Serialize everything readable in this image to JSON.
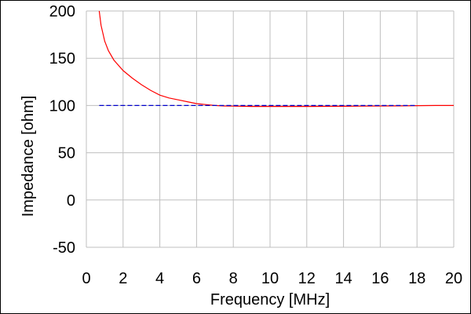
{
  "chart_data": {
    "type": "line",
    "title": "",
    "xlabel": "Frequency [MHz]",
    "ylabel": "Impedance [ohm]",
    "xlim": [
      0,
      20
    ],
    "ylim": [
      -50,
      200
    ],
    "x_ticks": [
      0,
      2,
      4,
      6,
      8,
      10,
      12,
      14,
      16,
      18,
      20
    ],
    "y_ticks": [
      -50,
      0,
      50,
      100,
      150,
      200
    ],
    "grid": true,
    "legend": "none",
    "series": [
      {
        "color": "#ff0000",
        "x": [
          0.7,
          0.8,
          1.0,
          1.2,
          1.5,
          2.0,
          2.5,
          3.0,
          3.5,
          4.0,
          4.5,
          5.0,
          5.5,
          6.0,
          6.5,
          7.0,
          7.5,
          8.0,
          9.0,
          10.0,
          11.0,
          12.0,
          13.0,
          14.0,
          15.0,
          16.0,
          17.0,
          18.0,
          19.0,
          20.0
        ],
        "y": [
          200,
          185,
          168,
          158,
          148,
          137,
          129,
          122,
          116,
          111,
          108,
          106,
          104,
          102,
          101,
          100,
          99.5,
          99.3,
          99.0,
          99.0,
          99.0,
          99.0,
          99.1,
          99.2,
          99.3,
          99.5,
          99.6,
          99.8,
          100,
          100
        ]
      },
      {
        "color": "#0000cc",
        "dashed": true,
        "x": [
          0.7,
          2,
          4,
          6,
          8,
          10,
          12,
          14,
          16,
          18
        ],
        "y": [
          100,
          100,
          100,
          100,
          100,
          100,
          100,
          100,
          100,
          100
        ]
      }
    ]
  }
}
